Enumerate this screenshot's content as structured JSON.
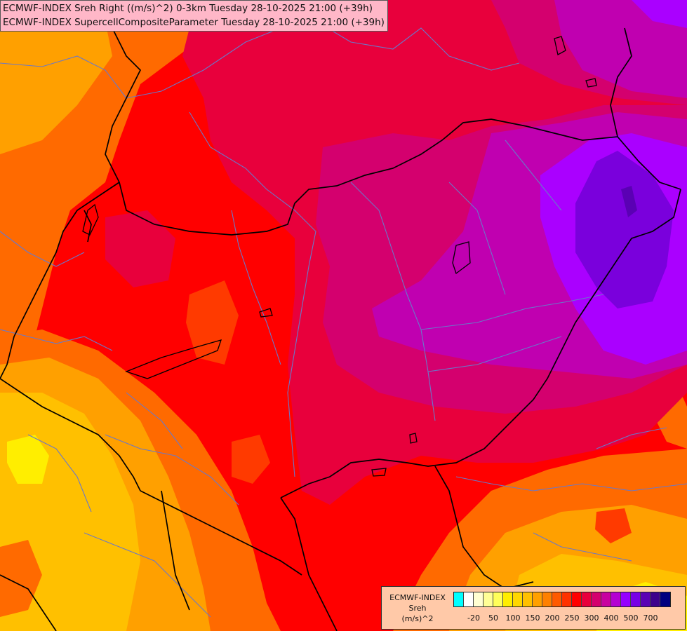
{
  "header": {
    "line1": "ECMWF-INDEX Sreh Right ((m/s)^2) 0-3km Tuesday 28-10-2025 21:00 (+39h)",
    "line2": "ECMWF-INDEX SupercellCompositeParameter Tuesday 28-10-2025 21:00 (+39h)"
  },
  "legend": {
    "line1": "ECMWF-INDEX",
    "line2": "Sreh",
    "line3": "(m/s)^2",
    "colors": [
      "#00ffff",
      "#ffffff",
      "#ffffd2",
      "#ffff96",
      "#ffff5a",
      "#ffee00",
      "#ffd700",
      "#ffc000",
      "#ffa000",
      "#ff8000",
      "#ff5a00",
      "#ff3200",
      "#ff0000",
      "#e8003c",
      "#d4006e",
      "#c800a0",
      "#b400d2",
      "#9600ff",
      "#7800e6",
      "#5a00b4",
      "#3c008c",
      "#000080"
    ],
    "ticks": [
      "-20",
      "50",
      "100",
      "150",
      "200",
      "250",
      "300",
      "400",
      "500",
      "700"
    ]
  },
  "field_colors": {
    "base": "#ff0000",
    "yellow": "#ffee00",
    "gold": "#ffc000",
    "orange": "#ffa000",
    "dark_orange": "#ff6a00",
    "red_orange": "#ff3a00",
    "crimson": "#e8003c",
    "magenta": "#d4006e",
    "purple": "#c000b0",
    "violet": "#aa00ff",
    "indigo": "#7a00dc",
    "deep_indigo": "#5a00b4"
  },
  "overlay_colors": {
    "country_border": "#000000",
    "admin_border": "#6a78c8"
  }
}
